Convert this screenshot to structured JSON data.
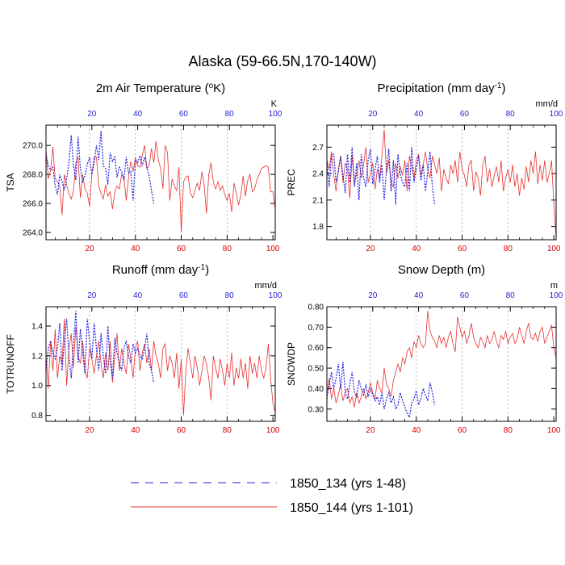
{
  "title": "Alaska (59-66.5N,170-140W)",
  "colors": {
    "series_a": "#2020e0",
    "series_b": "#e83030",
    "bottom_ticks": "#d40000",
    "top_ticks": "#1f1fd0",
    "gridline": "#8a8a8a"
  },
  "legend": [
    {
      "label": "1850_134 (yrs 1-48)",
      "style": "dashed-blue"
    },
    {
      "label": "1850_144 (yrs 1-101)",
      "style": "solid-red"
    }
  ],
  "chart_data": [
    {
      "type": "line",
      "title": "2m Air Temperature (oK)",
      "title_main": "2m Air Temperature (",
      "title_sup": "o",
      "title_end": "K)",
      "ylabel": "TSA",
      "unit": "K",
      "xlim": [
        1,
        101
      ],
      "top_xlim": [
        0,
        100
      ],
      "ylim": [
        263.5,
        271.4
      ],
      "yticks": [
        "264.0",
        "266.0",
        "268.0",
        "270.0"
      ],
      "ytick_values": [
        264,
        266,
        268,
        270
      ],
      "xticks_bottom": [
        "20",
        "40",
        "60",
        "80",
        "100"
      ],
      "xticks_top": [
        "20",
        "40",
        "60",
        "80",
        "100"
      ],
      "grid_x": [
        20,
        40,
        60,
        80
      ],
      "series": [
        {
          "name": "1850_134 (yrs 1-48)",
          "style": "dashed",
          "values": [
            269.4,
            268.6,
            268.3,
            268.5,
            267.2,
            266.6,
            268.0,
            267.5,
            266.9,
            267.7,
            268.8,
            270.7,
            268.6,
            267.6,
            270.6,
            268.4,
            267.5,
            267.9,
            268.7,
            269.2,
            268.0,
            268.8,
            270.0,
            269.0,
            271.0,
            268.6,
            268.4,
            267.3,
            269.5,
            268.9,
            269.2,
            267.8,
            268.5,
            268.2,
            267.6,
            269.2,
            268.1,
            268.2,
            266.2,
            269.0,
            268.8,
            269.3,
            268.6,
            269.2,
            268.5,
            267.9,
            266.9,
            266.0
          ]
        },
        {
          "name": "1850_144 (yrs 1-101)",
          "style": "solid",
          "values": [
            269.6,
            267.7,
            268.3,
            269.9,
            267.7,
            267.5,
            267.2,
            265.2,
            268.0,
            267.3,
            266.7,
            266.3,
            266.9,
            268.8,
            269.2,
            266.4,
            268.0,
            267.0,
            266.7,
            265.8,
            268.0,
            269.2,
            269.2,
            267.2,
            266.7,
            266.3,
            267.3,
            266.5,
            266.8,
            265.6,
            266.8,
            267.2,
            267.0,
            268.0,
            267.8,
            266.2,
            267.8,
            268.9,
            268.2,
            269.2,
            268.6,
            268.5,
            269.3,
            270.0,
            268.4,
            268.6,
            269.8,
            268.8,
            270.3,
            269.0,
            268.4,
            267.0,
            270.0,
            269.5,
            266.2,
            267.7,
            267.2,
            266.9,
            268.5,
            264.0,
            267.5,
            267.8,
            267.9,
            266.7,
            266.4,
            266.9,
            267.4,
            266.9,
            268.2,
            267.3,
            265.3,
            268.0,
            268.8,
            267.5,
            267.0,
            267.5,
            266.9,
            267.2,
            266.6,
            266.2,
            266.7,
            265.4,
            267.4,
            266.7,
            265.9,
            266.6,
            267.9,
            266.5,
            267.6,
            268.0,
            266.8,
            267.0,
            267.6,
            268.0,
            268.4,
            268.5,
            268.6,
            268.5,
            266.8,
            266.8,
            265.6
          ]
        }
      ]
    },
    {
      "type": "line",
      "title": "Precipitation (mm day-1)",
      "title_main": "Precipitation (mm day",
      "title_sup": "-1",
      "title_end": ")",
      "ylabel": "PREC",
      "unit": "mm/d",
      "xlim": [
        1,
        101
      ],
      "top_xlim": [
        0,
        100
      ],
      "ylim": [
        1.65,
        2.95
      ],
      "yticks": [
        "1.8",
        "2.1",
        "2.4",
        "2.7"
      ],
      "ytick_values": [
        1.8,
        2.1,
        2.4,
        2.7
      ],
      "xticks_bottom": [
        "20",
        "40",
        "60",
        "80",
        "100"
      ],
      "xticks_top": [
        "20",
        "40",
        "60",
        "80",
        "100"
      ],
      "grid_x": [
        20,
        40,
        60,
        80
      ],
      "series": [
        {
          "name": "1850_134 (yrs 1-48)",
          "style": "dashed",
          "values": [
            2.55,
            2.25,
            2.6,
            2.62,
            2.3,
            2.42,
            2.6,
            2.38,
            2.18,
            2.62,
            2.3,
            2.7,
            2.25,
            2.52,
            2.1,
            2.62,
            2.35,
            2.25,
            2.55,
            2.68,
            2.28,
            2.45,
            2.6,
            2.3,
            2.5,
            2.1,
            2.45,
            2.68,
            2.2,
            2.55,
            2.05,
            2.62,
            2.4,
            2.3,
            2.25,
            2.52,
            2.2,
            2.7,
            2.3,
            2.45,
            2.6,
            2.32,
            2.5,
            2.2,
            2.42,
            2.65,
            2.25,
            2.05
          ]
        },
        {
          "name": "1850_144 (yrs 1-101)",
          "style": "solid",
          "values": [
            2.55,
            2.45,
            2.65,
            2.38,
            2.2,
            2.45,
            2.6,
            2.3,
            2.52,
            2.45,
            2.12,
            2.6,
            2.28,
            2.4,
            2.55,
            2.35,
            2.5,
            2.7,
            2.3,
            2.4,
            2.52,
            2.22,
            2.45,
            2.35,
            2.6,
            2.9,
            2.4,
            2.55,
            2.3,
            2.25,
            2.52,
            2.35,
            2.48,
            2.38,
            2.55,
            2.2,
            2.6,
            2.48,
            2.35,
            2.55,
            2.62,
            2.38,
            2.5,
            2.65,
            2.45,
            2.35,
            2.6,
            2.5,
            2.4,
            2.58,
            2.2,
            2.45,
            2.35,
            2.28,
            2.5,
            2.4,
            2.55,
            2.3,
            2.65,
            2.45,
            2.38,
            2.25,
            2.5,
            2.55,
            2.2,
            2.42,
            2.35,
            2.15,
            2.5,
            2.6,
            2.3,
            2.45,
            2.25,
            2.38,
            2.48,
            2.3,
            2.55,
            2.2,
            2.35,
            2.45,
            2.3,
            2.5,
            2.25,
            2.4,
            2.15,
            2.35,
            2.22,
            2.48,
            2.3,
            2.55,
            2.4,
            2.65,
            2.28,
            2.5,
            2.32,
            2.55,
            2.3,
            2.4,
            2.55,
            2.05,
            1.68
          ]
        }
      ]
    },
    {
      "type": "line",
      "title": "Runoff (mm day-1)",
      "title_main": "Runoff (mm day",
      "title_sup": "-1",
      "title_end": ")",
      "ylabel": "TOTRUNOFF",
      "unit": "mm/d",
      "xlim": [
        1,
        101
      ],
      "top_xlim": [
        0,
        100
      ],
      "ylim": [
        0.76,
        1.53
      ],
      "yticks": [
        "0.8",
        "1.0",
        "1.2",
        "1.4"
      ],
      "ytick_values": [
        0.8,
        1.0,
        1.2,
        1.4
      ],
      "xticks_bottom": [
        "20",
        "40",
        "60",
        "80",
        "100"
      ],
      "xticks_top": [
        "20",
        "40",
        "60",
        "80",
        "100"
      ],
      "grid_x": [
        20,
        40,
        60,
        80
      ],
      "series": [
        {
          "name": "1850_134 (yrs 1-48)",
          "style": "dashed",
          "values": [
            1.1,
            1.25,
            1.3,
            1.22,
            1.18,
            1.25,
            1.42,
            1.1,
            1.3,
            1.45,
            1.2,
            1.05,
            1.28,
            1.5,
            1.15,
            1.38,
            1.22,
            1.08,
            1.45,
            1.3,
            1.18,
            1.42,
            1.25,
            1.1,
            1.35,
            1.2,
            1.08,
            1.4,
            1.15,
            1.05,
            1.32,
            1.22,
            1.15,
            1.1,
            1.25,
            1.3,
            1.2,
            1.15,
            1.28,
            1.22,
            1.25,
            1.2,
            1.18,
            1.25,
            1.35,
            1.15,
            1.1,
            1.02
          ]
        },
        {
          "name": "1850_144 (yrs 1-101)",
          "style": "solid",
          "values": [
            1.2,
            0.98,
            1.3,
            1.1,
            1.38,
            1.05,
            1.2,
            1.15,
            1.45,
            1.0,
            1.25,
            1.35,
            1.12,
            1.4,
            1.2,
            1.15,
            1.3,
            1.1,
            1.05,
            1.25,
            1.18,
            1.08,
            1.2,
            1.3,
            1.15,
            1.05,
            1.22,
            1.1,
            1.3,
            1.02,
            1.2,
            1.35,
            1.1,
            1.25,
            1.15,
            1.08,
            1.28,
            1.18,
            1.05,
            1.25,
            1.3,
            1.1,
            1.22,
            1.28,
            1.15,
            1.25,
            1.1,
            1.3,
            1.2,
            1.15,
            1.05,
            1.25,
            1.28,
            1.1,
            1.2,
            1.15,
            1.05,
            1.22,
            0.98,
            1.18,
            0.8,
            1.1,
            1.25,
            1.15,
            1.05,
            1.2,
            1.12,
            1.0,
            1.1,
            1.2,
            1.15,
            1.05,
            0.9,
            1.2,
            1.12,
            1.05,
            1.18,
            1.1,
            1.0,
            1.15,
            1.05,
            1.22,
            1.0,
            1.12,
            1.05,
            1.18,
            1.05,
            1.15,
            0.98,
            1.2,
            1.08,
            1.15,
            1.05,
            1.2,
            1.1,
            1.05,
            1.12,
            1.28,
            1.05,
            0.88,
            0.82
          ]
        }
      ]
    },
    {
      "type": "line",
      "title": "Snow Depth (m)",
      "title_main": "Snow Depth (m)",
      "title_sup": "",
      "title_end": "",
      "ylabel": "SNOWDP",
      "unit": "m",
      "xlim": [
        1,
        101
      ],
      "top_xlim": [
        0,
        100
      ],
      "ylim": [
        0.24,
        0.8
      ],
      "yticks": [
        "0.30",
        "0.40",
        "0.50",
        "0.60",
        "0.70",
        "0.80"
      ],
      "ytick_values": [
        0.3,
        0.4,
        0.5,
        0.6,
        0.7,
        0.8
      ],
      "xticks_bottom": [
        "20",
        "40",
        "60",
        "80",
        "100"
      ],
      "xticks_top": [
        "20",
        "40",
        "60",
        "80",
        "100"
      ],
      "grid_x": [
        20,
        40,
        60,
        80
      ],
      "series": [
        {
          "name": "1850_134 (yrs 1-48)",
          "style": "dashed",
          "values": [
            0.35,
            0.42,
            0.48,
            0.4,
            0.45,
            0.52,
            0.4,
            0.53,
            0.38,
            0.35,
            0.42,
            0.48,
            0.38,
            0.36,
            0.44,
            0.4,
            0.37,
            0.42,
            0.36,
            0.4,
            0.37,
            0.34,
            0.36,
            0.32,
            0.38,
            0.3,
            0.35,
            0.38,
            0.33,
            0.36,
            0.3,
            0.32,
            0.38,
            0.34,
            0.31,
            0.28,
            0.26,
            0.33,
            0.35,
            0.39,
            0.32,
            0.35,
            0.4,
            0.37,
            0.34,
            0.43,
            0.38,
            0.32
          ]
        },
        {
          "name": "1850_144 (yrs 1-101)",
          "style": "solid",
          "values": [
            0.38,
            0.45,
            0.35,
            0.4,
            0.33,
            0.37,
            0.42,
            0.34,
            0.38,
            0.4,
            0.33,
            0.36,
            0.31,
            0.38,
            0.33,
            0.36,
            0.4,
            0.35,
            0.38,
            0.43,
            0.38,
            0.35,
            0.44,
            0.4,
            0.38,
            0.5,
            0.42,
            0.4,
            0.36,
            0.44,
            0.48,
            0.52,
            0.48,
            0.55,
            0.52,
            0.58,
            0.6,
            0.55,
            0.63,
            0.6,
            0.66,
            0.62,
            0.6,
            0.62,
            0.78,
            0.68,
            0.65,
            0.63,
            0.6,
            0.66,
            0.62,
            0.65,
            0.6,
            0.65,
            0.68,
            0.62,
            0.58,
            0.75,
            0.7,
            0.65,
            0.68,
            0.62,
            0.66,
            0.72,
            0.65,
            0.62,
            0.6,
            0.65,
            0.63,
            0.6,
            0.66,
            0.62,
            0.64,
            0.68,
            0.63,
            0.6,
            0.66,
            0.64,
            0.68,
            0.62,
            0.65,
            0.67,
            0.62,
            0.64,
            0.7,
            0.66,
            0.62,
            0.68,
            0.72,
            0.65,
            0.64,
            0.67,
            0.63,
            0.68,
            0.7,
            0.62,
            0.65,
            0.68,
            0.71,
            0.6,
            0.55
          ]
        }
      ]
    }
  ]
}
